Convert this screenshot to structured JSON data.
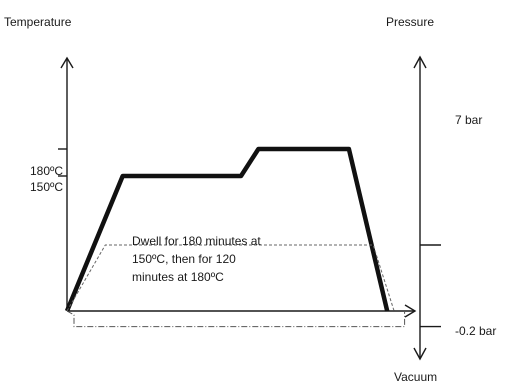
{
  "chart_data": {
    "type": "line",
    "title": "",
    "ylabel_left": "Temperature",
    "ylabel_right_top": "Pressure",
    "ylabel_right_bottom": "Vacuum",
    "left_tick_labels": [
      "180ºC",
      "150ºC"
    ],
    "right_tick_labels": [
      "7 bar",
      "-0.2 bar"
    ],
    "annotation": [
      "Dwell for 180 minutes at",
      "150ºC, then for 120",
      "minutes at 180ºC"
    ],
    "series": [
      {
        "style": "solid-thick",
        "x": [
          0,
          0.16,
          0.5,
          0.55,
          0.81,
          0.92
        ],
        "y": [
          0,
          150,
          150,
          180,
          180,
          0
        ]
      },
      {
        "style": "dashed-thin",
        "x": [
          0,
          0.11,
          0.88,
          0.94
        ],
        "y": [
          0,
          7,
          7,
          0
        ]
      },
      {
        "style": "dash-dot-thin",
        "x": [
          0,
          0.02,
          0.02,
          0.97,
          0.97
        ],
        "y": [
          0,
          -0.05,
          -0.2,
          -0.2,
          0
        ]
      }
    ],
    "colors": {
      "axis": "#1a1a1a",
      "solid": "#111111",
      "dashed": "#666666",
      "dashdot": "#555555"
    }
  }
}
